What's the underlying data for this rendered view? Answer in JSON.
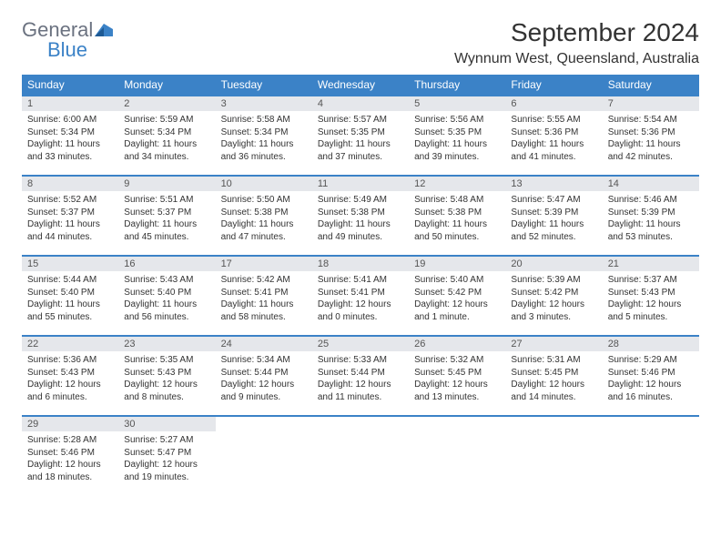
{
  "logo": {
    "general": "General",
    "blue": "Blue"
  },
  "title": "September 2024",
  "location": "Wynnum West, Queensland, Australia",
  "colors": {
    "header_bg": "#3b82c7",
    "header_text": "#ffffff",
    "daynum_bg": "#e5e7eb",
    "border": "#3b82c7"
  },
  "day_headers": [
    "Sunday",
    "Monday",
    "Tuesday",
    "Wednesday",
    "Thursday",
    "Friday",
    "Saturday"
  ],
  "weeks": [
    [
      {
        "num": "1",
        "sunrise": "Sunrise: 6:00 AM",
        "sunset": "Sunset: 5:34 PM",
        "day1": "Daylight: 11 hours",
        "day2": "and 33 minutes."
      },
      {
        "num": "2",
        "sunrise": "Sunrise: 5:59 AM",
        "sunset": "Sunset: 5:34 PM",
        "day1": "Daylight: 11 hours",
        "day2": "and 34 minutes."
      },
      {
        "num": "3",
        "sunrise": "Sunrise: 5:58 AM",
        "sunset": "Sunset: 5:34 PM",
        "day1": "Daylight: 11 hours",
        "day2": "and 36 minutes."
      },
      {
        "num": "4",
        "sunrise": "Sunrise: 5:57 AM",
        "sunset": "Sunset: 5:35 PM",
        "day1": "Daylight: 11 hours",
        "day2": "and 37 minutes."
      },
      {
        "num": "5",
        "sunrise": "Sunrise: 5:56 AM",
        "sunset": "Sunset: 5:35 PM",
        "day1": "Daylight: 11 hours",
        "day2": "and 39 minutes."
      },
      {
        "num": "6",
        "sunrise": "Sunrise: 5:55 AM",
        "sunset": "Sunset: 5:36 PM",
        "day1": "Daylight: 11 hours",
        "day2": "and 41 minutes."
      },
      {
        "num": "7",
        "sunrise": "Sunrise: 5:54 AM",
        "sunset": "Sunset: 5:36 PM",
        "day1": "Daylight: 11 hours",
        "day2": "and 42 minutes."
      }
    ],
    [
      {
        "num": "8",
        "sunrise": "Sunrise: 5:52 AM",
        "sunset": "Sunset: 5:37 PM",
        "day1": "Daylight: 11 hours",
        "day2": "and 44 minutes."
      },
      {
        "num": "9",
        "sunrise": "Sunrise: 5:51 AM",
        "sunset": "Sunset: 5:37 PM",
        "day1": "Daylight: 11 hours",
        "day2": "and 45 minutes."
      },
      {
        "num": "10",
        "sunrise": "Sunrise: 5:50 AM",
        "sunset": "Sunset: 5:38 PM",
        "day1": "Daylight: 11 hours",
        "day2": "and 47 minutes."
      },
      {
        "num": "11",
        "sunrise": "Sunrise: 5:49 AM",
        "sunset": "Sunset: 5:38 PM",
        "day1": "Daylight: 11 hours",
        "day2": "and 49 minutes."
      },
      {
        "num": "12",
        "sunrise": "Sunrise: 5:48 AM",
        "sunset": "Sunset: 5:38 PM",
        "day1": "Daylight: 11 hours",
        "day2": "and 50 minutes."
      },
      {
        "num": "13",
        "sunrise": "Sunrise: 5:47 AM",
        "sunset": "Sunset: 5:39 PM",
        "day1": "Daylight: 11 hours",
        "day2": "and 52 minutes."
      },
      {
        "num": "14",
        "sunrise": "Sunrise: 5:46 AM",
        "sunset": "Sunset: 5:39 PM",
        "day1": "Daylight: 11 hours",
        "day2": "and 53 minutes."
      }
    ],
    [
      {
        "num": "15",
        "sunrise": "Sunrise: 5:44 AM",
        "sunset": "Sunset: 5:40 PM",
        "day1": "Daylight: 11 hours",
        "day2": "and 55 minutes."
      },
      {
        "num": "16",
        "sunrise": "Sunrise: 5:43 AM",
        "sunset": "Sunset: 5:40 PM",
        "day1": "Daylight: 11 hours",
        "day2": "and 56 minutes."
      },
      {
        "num": "17",
        "sunrise": "Sunrise: 5:42 AM",
        "sunset": "Sunset: 5:41 PM",
        "day1": "Daylight: 11 hours",
        "day2": "and 58 minutes."
      },
      {
        "num": "18",
        "sunrise": "Sunrise: 5:41 AM",
        "sunset": "Sunset: 5:41 PM",
        "day1": "Daylight: 12 hours",
        "day2": "and 0 minutes."
      },
      {
        "num": "19",
        "sunrise": "Sunrise: 5:40 AM",
        "sunset": "Sunset: 5:42 PM",
        "day1": "Daylight: 12 hours",
        "day2": "and 1 minute."
      },
      {
        "num": "20",
        "sunrise": "Sunrise: 5:39 AM",
        "sunset": "Sunset: 5:42 PM",
        "day1": "Daylight: 12 hours",
        "day2": "and 3 minutes."
      },
      {
        "num": "21",
        "sunrise": "Sunrise: 5:37 AM",
        "sunset": "Sunset: 5:43 PM",
        "day1": "Daylight: 12 hours",
        "day2": "and 5 minutes."
      }
    ],
    [
      {
        "num": "22",
        "sunrise": "Sunrise: 5:36 AM",
        "sunset": "Sunset: 5:43 PM",
        "day1": "Daylight: 12 hours",
        "day2": "and 6 minutes."
      },
      {
        "num": "23",
        "sunrise": "Sunrise: 5:35 AM",
        "sunset": "Sunset: 5:43 PM",
        "day1": "Daylight: 12 hours",
        "day2": "and 8 minutes."
      },
      {
        "num": "24",
        "sunrise": "Sunrise: 5:34 AM",
        "sunset": "Sunset: 5:44 PM",
        "day1": "Daylight: 12 hours",
        "day2": "and 9 minutes."
      },
      {
        "num": "25",
        "sunrise": "Sunrise: 5:33 AM",
        "sunset": "Sunset: 5:44 PM",
        "day1": "Daylight: 12 hours",
        "day2": "and 11 minutes."
      },
      {
        "num": "26",
        "sunrise": "Sunrise: 5:32 AM",
        "sunset": "Sunset: 5:45 PM",
        "day1": "Daylight: 12 hours",
        "day2": "and 13 minutes."
      },
      {
        "num": "27",
        "sunrise": "Sunrise: 5:31 AM",
        "sunset": "Sunset: 5:45 PM",
        "day1": "Daylight: 12 hours",
        "day2": "and 14 minutes."
      },
      {
        "num": "28",
        "sunrise": "Sunrise: 5:29 AM",
        "sunset": "Sunset: 5:46 PM",
        "day1": "Daylight: 12 hours",
        "day2": "and 16 minutes."
      }
    ],
    [
      {
        "num": "29",
        "sunrise": "Sunrise: 5:28 AM",
        "sunset": "Sunset: 5:46 PM",
        "day1": "Daylight: 12 hours",
        "day2": "and 18 minutes."
      },
      {
        "num": "30",
        "sunrise": "Sunrise: 5:27 AM",
        "sunset": "Sunset: 5:47 PM",
        "day1": "Daylight: 12 hours",
        "day2": "and 19 minutes."
      },
      null,
      null,
      null,
      null,
      null
    ]
  ]
}
